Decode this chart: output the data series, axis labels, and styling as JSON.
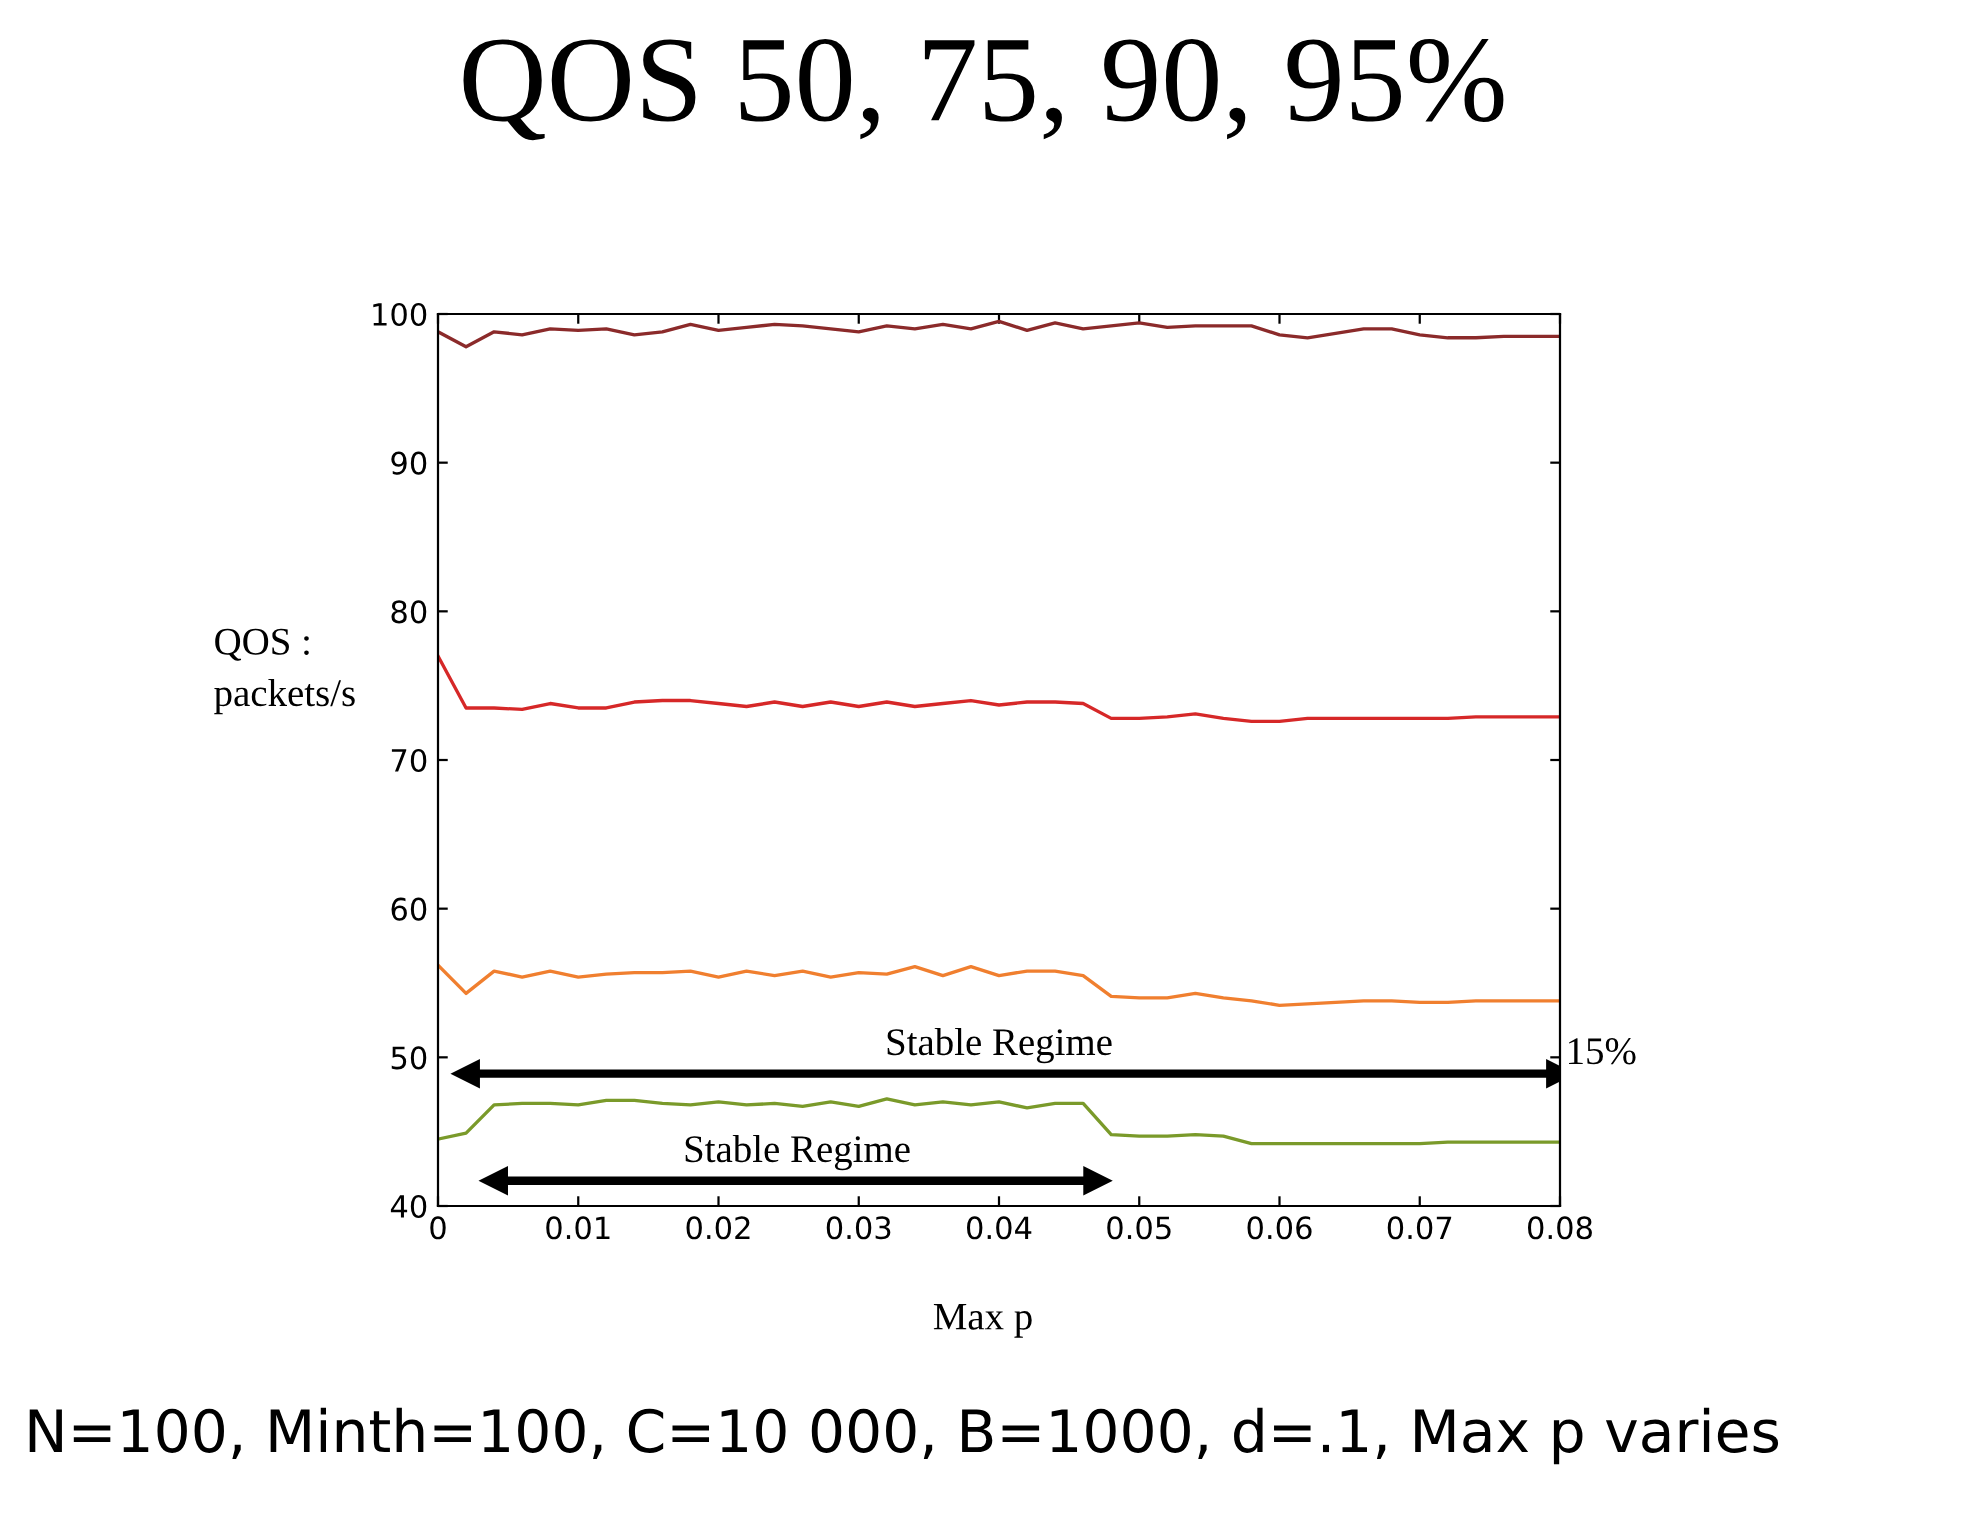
{
  "chart_data": {
    "type": "line",
    "title": "QOS 50, 75, 90, 95%",
    "xlabel": "Max p",
    "ylabel": "QOS :\npackets/s",
    "x": [
      0,
      0.002,
      0.004,
      0.006,
      0.008,
      0.01,
      0.012,
      0.014,
      0.016,
      0.018,
      0.02,
      0.022,
      0.024,
      0.026,
      0.028,
      0.03,
      0.032,
      0.034,
      0.036,
      0.038,
      0.04,
      0.042,
      0.044,
      0.046,
      0.048,
      0.05,
      0.052,
      0.054,
      0.056,
      0.058,
      0.06,
      0.062,
      0.064,
      0.066,
      0.068,
      0.07,
      0.072,
      0.074,
      0.076,
      0.078,
      0.08
    ],
    "series": [
      {
        "color": "#8b2a2a",
        "values": [
          98.8,
          97.8,
          98.8,
          98.6,
          99.0,
          98.9,
          99.0,
          98.6,
          98.8,
          99.3,
          98.9,
          99.1,
          99.3,
          99.2,
          99.0,
          98.8,
          99.2,
          99.0,
          99.3,
          99.0,
          99.5,
          98.9,
          99.4,
          99.0,
          99.2,
          99.4,
          99.1,
          99.2,
          99.2,
          99.2,
          98.6,
          98.4,
          98.7,
          99.0,
          99.0,
          98.6,
          98.4,
          98.4,
          98.5,
          98.5,
          98.5
        ]
      },
      {
        "color": "#d62828",
        "values": [
          77,
          73.5,
          73.5,
          73.4,
          73.8,
          73.5,
          73.5,
          73.9,
          74.0,
          74.0,
          73.8,
          73.6,
          73.9,
          73.6,
          73.9,
          73.6,
          73.9,
          73.6,
          73.8,
          74.0,
          73.7,
          73.9,
          73.9,
          73.8,
          72.8,
          72.8,
          72.9,
          73.1,
          72.8,
          72.6,
          72.6,
          72.8,
          72.8,
          72.8,
          72.8,
          72.8,
          72.8,
          72.9,
          72.9,
          72.9,
          72.9
        ]
      },
      {
        "color": "#f07f2f",
        "values": [
          56.2,
          54.3,
          55.8,
          55.4,
          55.8,
          55.4,
          55.6,
          55.7,
          55.7,
          55.8,
          55.4,
          55.8,
          55.5,
          55.8,
          55.4,
          55.7,
          55.6,
          56.1,
          55.5,
          56.1,
          55.5,
          55.8,
          55.8,
          55.5,
          54.1,
          54.0,
          54.0,
          54.3,
          54.0,
          53.8,
          53.5,
          53.6,
          53.7,
          53.8,
          53.8,
          53.7,
          53.7,
          53.8,
          53.8,
          53.8,
          53.8
        ]
      },
      {
        "type": "line",
        "color": "#000000",
        "x": [
          0.002,
          0.08
        ],
        "values": [
          48.9,
          48.9
        ],
        "marker": "triangle"
      },
      {
        "type": "line",
        "color": "#000000",
        "x": [
          0.004,
          0.047
        ],
        "values": [
          41.7,
          41.7
        ],
        "marker": "triangle"
      },
      {
        "color": "#7a9a2a",
        "values": [
          44.5,
          44.9,
          46.8,
          46.9,
          46.9,
          46.8,
          47.1,
          47.1,
          46.9,
          46.8,
          47.0,
          46.8,
          46.9,
          46.7,
          47.0,
          46.7,
          47.2,
          46.8,
          47.0,
          46.8,
          47.0,
          46.6,
          46.9,
          46.9,
          44.8,
          44.7,
          44.7,
          44.8,
          44.7,
          44.2,
          44.2,
          44.2,
          44.2,
          44.2,
          44.2,
          44.2,
          44.3,
          44.3,
          44.3,
          44.3,
          44.3
        ]
      }
    ],
    "xlim": [
      0,
      0.08
    ],
    "xticks": [
      0,
      0.01,
      0.02,
      0.03,
      0.04,
      0.05,
      0.06,
      0.07,
      0.08
    ],
    "ylim": [
      40,
      100
    ],
    "yticks": [
      40,
      50,
      60,
      70,
      80,
      90,
      100
    ],
    "annotations": [
      "Stable Regime",
      "Stable Regime",
      "15%",
      "N=100, Minth=100, C=10 000, B=1000, d=.1, Max p varies"
    ],
    "grid": false,
    "legend": false
  }
}
